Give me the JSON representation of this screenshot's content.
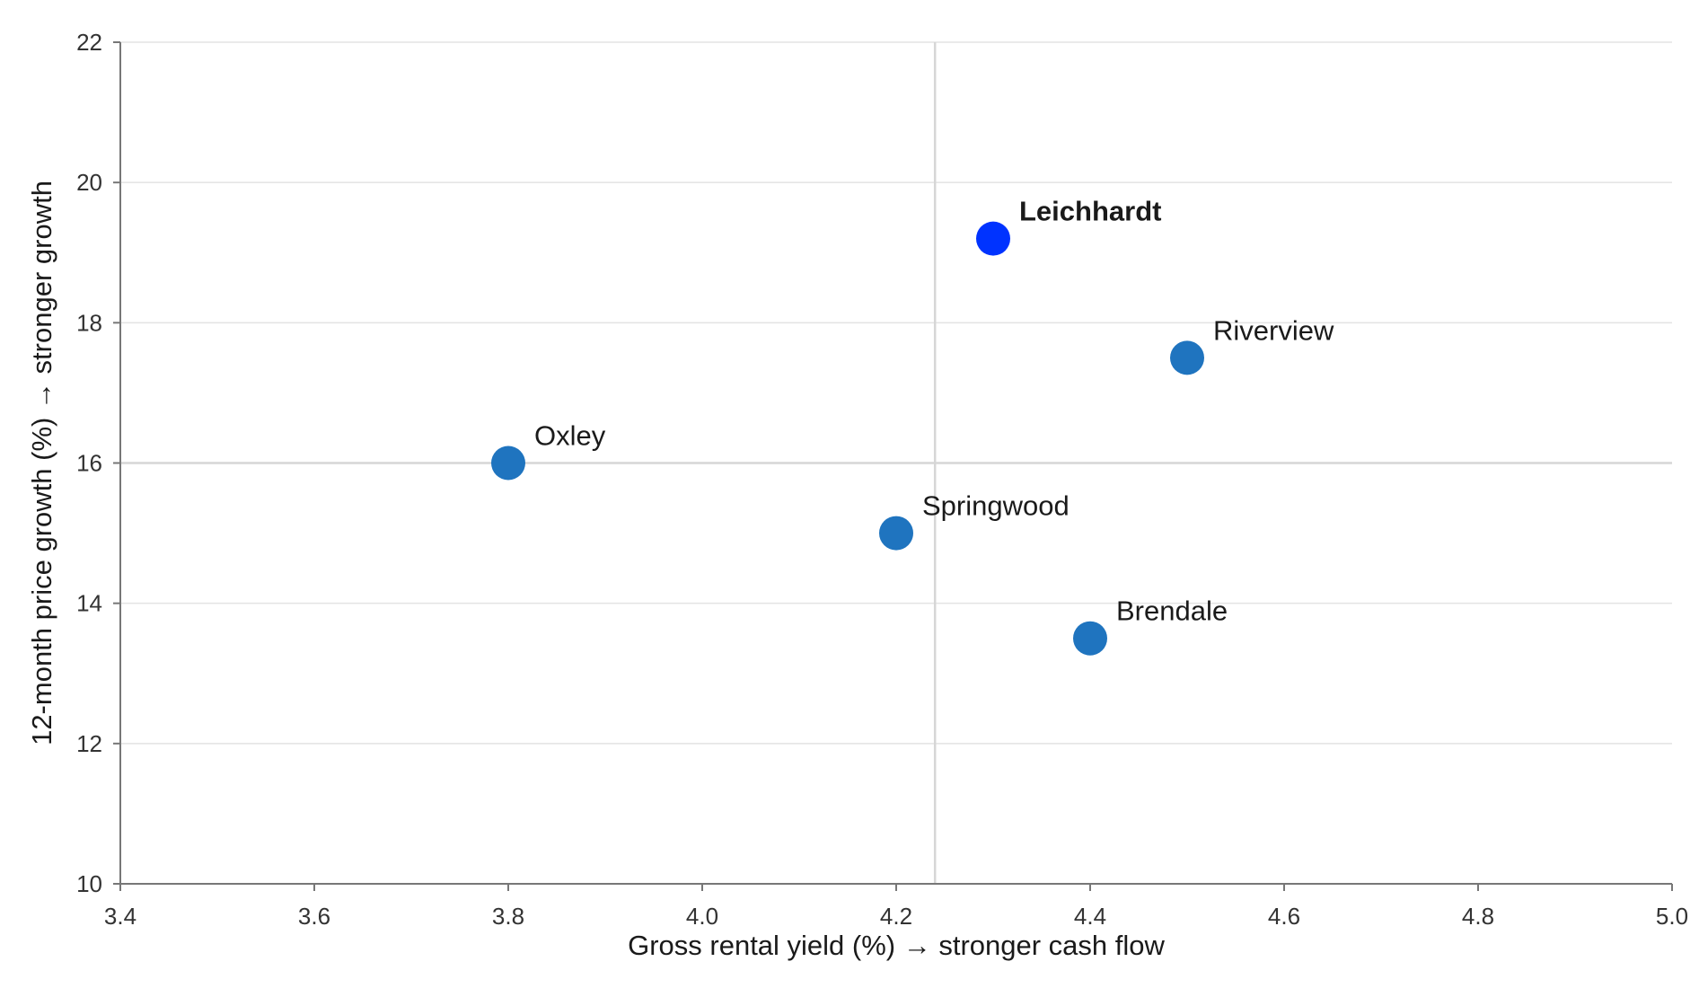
{
  "chart_data": {
    "type": "scatter",
    "title": "",
    "xlabel": "Gross rental yield (%)  →  stronger cash flow",
    "ylabel": "12-month price growth (%)  →  stronger growth",
    "xlim": [
      3.4,
      5.0
    ],
    "ylim": [
      10,
      22
    ],
    "x_ticks": [
      "3.4",
      "3.6",
      "3.8",
      "4.0",
      "4.2",
      "4.4",
      "4.6",
      "4.8",
      "5.0"
    ],
    "y_ticks": [
      "10",
      "12",
      "14",
      "16",
      "18",
      "20",
      "22"
    ],
    "grid": "horizontal",
    "reference_lines": {
      "x": 4.24,
      "y": 16
    },
    "points": [
      {
        "label": "Leichhardt",
        "x": 4.3,
        "y": 19.2,
        "highlight": true
      },
      {
        "label": "Riverview",
        "x": 4.5,
        "y": 17.5,
        "highlight": false
      },
      {
        "label": "Oxley",
        "x": 3.8,
        "y": 16.0,
        "highlight": false
      },
      {
        "label": "Springwood",
        "x": 4.2,
        "y": 15.0,
        "highlight": false
      },
      {
        "label": "Brendale",
        "x": 4.4,
        "y": 13.5,
        "highlight": false
      }
    ],
    "colors": {
      "point": "#1f74bf",
      "highlight": "#0033ff",
      "grid": "#e3e3e3",
      "reference": "#d6d6d6",
      "axis": "#777777"
    }
  }
}
